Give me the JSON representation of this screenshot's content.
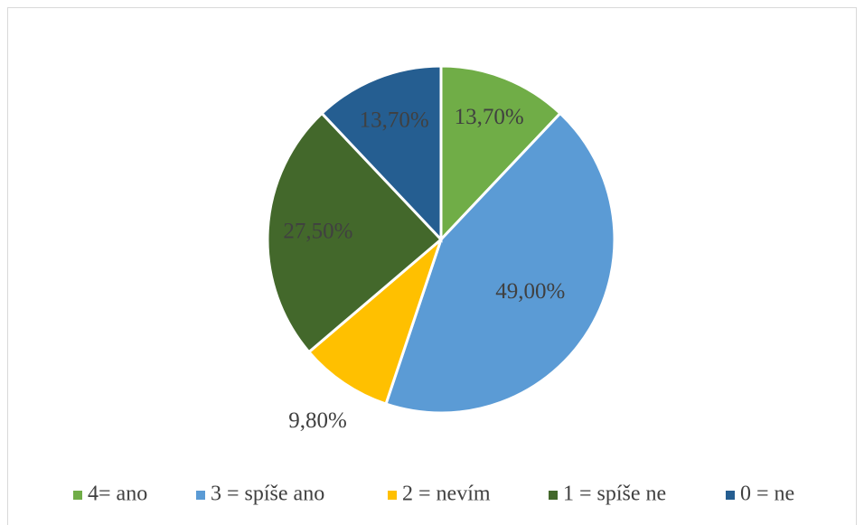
{
  "chart_data": {
    "type": "pie",
    "categories": [
      "4= ano",
      "3 = spíše ano",
      "2 = nevím",
      "1 = spíše ne",
      "0 = ne"
    ],
    "values": [
      13.7,
      49.0,
      9.8,
      27.5,
      13.7
    ],
    "value_labels": [
      "13,70%",
      "49,00%",
      "9,80%",
      "27,50%",
      "13,70%"
    ],
    "colors": [
      "#70ad47",
      "#5b9bd5",
      "#ffc000",
      "#43682b",
      "#255e91"
    ],
    "legend": "bottom"
  }
}
